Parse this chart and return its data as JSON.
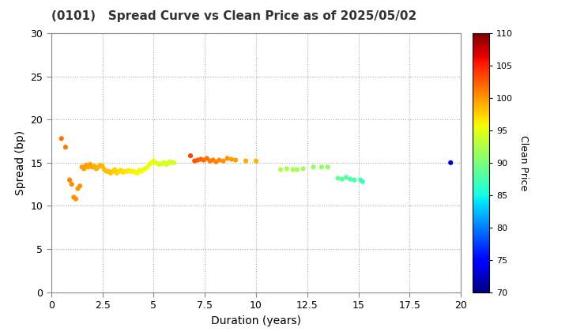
{
  "title": "(0101)   Spread Curve vs Clean Price as of 2025/05/02",
  "xlabel": "Duration (years)",
  "ylabel": "Spread (bp)",
  "colorbar_label": "Clean Price",
  "xlim": [
    0,
    20
  ],
  "ylim": [
    0,
    30
  ],
  "xticks": [
    0.0,
    2.5,
    5.0,
    7.5,
    10.0,
    12.5,
    15.0,
    17.5,
    20.0
  ],
  "yticks": [
    0,
    5,
    10,
    15,
    20,
    25,
    30
  ],
  "cmap_min": 70,
  "cmap_max": 110,
  "colorbar_ticks": [
    70,
    75,
    80,
    85,
    90,
    95,
    100,
    105,
    110
  ],
  "background_color": "#ffffff",
  "scatter_data": [
    {
      "duration": 0.5,
      "spread": 17.8,
      "price": 101.5
    },
    {
      "duration": 0.7,
      "spread": 16.8,
      "price": 101.2
    },
    {
      "duration": 0.9,
      "spread": 13.0,
      "price": 100.8
    },
    {
      "duration": 1.0,
      "spread": 12.5,
      "price": 100.5
    },
    {
      "duration": 1.1,
      "spread": 11.0,
      "price": 100.3
    },
    {
      "duration": 1.2,
      "spread": 10.8,
      "price": 100.2
    },
    {
      "duration": 1.3,
      "spread": 12.0,
      "price": 100.1
    },
    {
      "duration": 1.4,
      "spread": 12.3,
      "price": 100.0
    },
    {
      "duration": 1.5,
      "spread": 14.5,
      "price": 99.8
    },
    {
      "duration": 1.6,
      "spread": 14.3,
      "price": 99.7
    },
    {
      "duration": 1.7,
      "spread": 14.7,
      "price": 99.6
    },
    {
      "duration": 1.8,
      "spread": 14.5,
      "price": 99.5
    },
    {
      "duration": 1.9,
      "spread": 14.8,
      "price": 99.4
    },
    {
      "duration": 2.0,
      "spread": 14.5,
      "price": 99.3
    },
    {
      "duration": 2.1,
      "spread": 14.6,
      "price": 99.2
    },
    {
      "duration": 2.2,
      "spread": 14.3,
      "price": 99.0
    },
    {
      "duration": 2.3,
      "spread": 14.5,
      "price": 98.9
    },
    {
      "duration": 2.4,
      "spread": 14.7,
      "price": 98.8
    },
    {
      "duration": 2.5,
      "spread": 14.6,
      "price": 98.7
    },
    {
      "duration": 2.6,
      "spread": 14.2,
      "price": 98.5
    },
    {
      "duration": 2.7,
      "spread": 14.0,
      "price": 98.4
    },
    {
      "duration": 2.8,
      "spread": 14.0,
      "price": 98.2
    },
    {
      "duration": 2.9,
      "spread": 13.8,
      "price": 98.0
    },
    {
      "duration": 3.0,
      "spread": 14.0,
      "price": 97.8
    },
    {
      "duration": 3.1,
      "spread": 14.2,
      "price": 97.6
    },
    {
      "duration": 3.2,
      "spread": 13.8,
      "price": 97.5
    },
    {
      "duration": 3.3,
      "spread": 14.0,
      "price": 97.3
    },
    {
      "duration": 3.4,
      "spread": 14.1,
      "price": 97.1
    },
    {
      "duration": 3.5,
      "spread": 13.9,
      "price": 97.0
    },
    {
      "duration": 3.6,
      "spread": 14.0,
      "price": 96.8
    },
    {
      "duration": 3.7,
      "spread": 14.0,
      "price": 96.6
    },
    {
      "duration": 3.8,
      "spread": 14.1,
      "price": 96.5
    },
    {
      "duration": 3.9,
      "spread": 14.0,
      "price": 96.3
    },
    {
      "duration": 4.0,
      "spread": 14.0,
      "price": 96.2
    },
    {
      "duration": 4.1,
      "spread": 13.9,
      "price": 96.0
    },
    {
      "duration": 4.2,
      "spread": 13.8,
      "price": 95.9
    },
    {
      "duration": 4.3,
      "spread": 14.1,
      "price": 95.8
    },
    {
      "duration": 4.4,
      "spread": 14.0,
      "price": 95.7
    },
    {
      "duration": 4.5,
      "spread": 14.2,
      "price": 95.6
    },
    {
      "duration": 4.6,
      "spread": 14.3,
      "price": 95.5
    },
    {
      "duration": 4.7,
      "spread": 14.5,
      "price": 95.4
    },
    {
      "duration": 4.8,
      "spread": 14.8,
      "price": 95.3
    },
    {
      "duration": 4.9,
      "spread": 15.0,
      "price": 95.2
    },
    {
      "duration": 5.0,
      "spread": 15.2,
      "price": 95.0
    },
    {
      "duration": 5.1,
      "spread": 15.0,
      "price": 94.9
    },
    {
      "duration": 5.2,
      "spread": 14.9,
      "price": 94.8
    },
    {
      "duration": 5.3,
      "spread": 14.8,
      "price": 94.7
    },
    {
      "duration": 5.4,
      "spread": 14.9,
      "price": 94.6
    },
    {
      "duration": 5.5,
      "spread": 15.0,
      "price": 94.5
    },
    {
      "duration": 5.6,
      "spread": 14.8,
      "price": 94.4
    },
    {
      "duration": 5.7,
      "spread": 14.9,
      "price": 94.3
    },
    {
      "duration": 5.8,
      "spread": 15.1,
      "price": 94.2
    },
    {
      "duration": 5.9,
      "spread": 15.0,
      "price": 94.1
    },
    {
      "duration": 6.0,
      "spread": 15.0,
      "price": 94.0
    },
    {
      "duration": 6.8,
      "spread": 15.8,
      "price": 103.5
    },
    {
      "duration": 7.0,
      "spread": 15.2,
      "price": 102.8
    },
    {
      "duration": 7.15,
      "spread": 15.3,
      "price": 102.5
    },
    {
      "duration": 7.3,
      "spread": 15.4,
      "price": 102.2
    },
    {
      "duration": 7.45,
      "spread": 15.3,
      "price": 101.8
    },
    {
      "duration": 7.6,
      "spread": 15.5,
      "price": 101.5
    },
    {
      "duration": 7.75,
      "spread": 15.2,
      "price": 101.2
    },
    {
      "duration": 7.9,
      "spread": 15.3,
      "price": 101.0
    },
    {
      "duration": 8.05,
      "spread": 15.1,
      "price": 100.8
    },
    {
      "duration": 8.2,
      "spread": 15.3,
      "price": 100.5
    },
    {
      "duration": 8.4,
      "spread": 15.2,
      "price": 100.3
    },
    {
      "duration": 8.6,
      "spread": 15.5,
      "price": 100.0
    },
    {
      "duration": 8.8,
      "spread": 15.4,
      "price": 99.8
    },
    {
      "duration": 9.0,
      "spread": 15.3,
      "price": 99.6
    },
    {
      "duration": 9.5,
      "spread": 15.2,
      "price": 99.2
    },
    {
      "duration": 10.0,
      "spread": 15.2,
      "price": 98.8
    },
    {
      "duration": 11.2,
      "spread": 14.2,
      "price": 92.5
    },
    {
      "duration": 11.5,
      "spread": 14.3,
      "price": 92.3
    },
    {
      "duration": 11.8,
      "spread": 14.2,
      "price": 92.1
    },
    {
      "duration": 12.0,
      "spread": 14.2,
      "price": 92.0
    },
    {
      "duration": 12.3,
      "spread": 14.3,
      "price": 91.8
    },
    {
      "duration": 12.8,
      "spread": 14.5,
      "price": 91.5
    },
    {
      "duration": 13.2,
      "spread": 14.5,
      "price": 91.2
    },
    {
      "duration": 13.5,
      "spread": 14.5,
      "price": 91.0
    },
    {
      "duration": 14.0,
      "spread": 13.2,
      "price": 88.5
    },
    {
      "duration": 14.2,
      "spread": 13.1,
      "price": 88.3
    },
    {
      "duration": 14.4,
      "spread": 13.3,
      "price": 88.0
    },
    {
      "duration": 14.6,
      "spread": 13.1,
      "price": 87.8
    },
    {
      "duration": 14.8,
      "spread": 13.0,
      "price": 87.6
    },
    {
      "duration": 15.1,
      "spread": 13.0,
      "price": 87.3
    },
    {
      "duration": 15.2,
      "spread": 12.8,
      "price": 87.0
    },
    {
      "duration": 19.5,
      "spread": 15.0,
      "price": 73.0
    }
  ]
}
